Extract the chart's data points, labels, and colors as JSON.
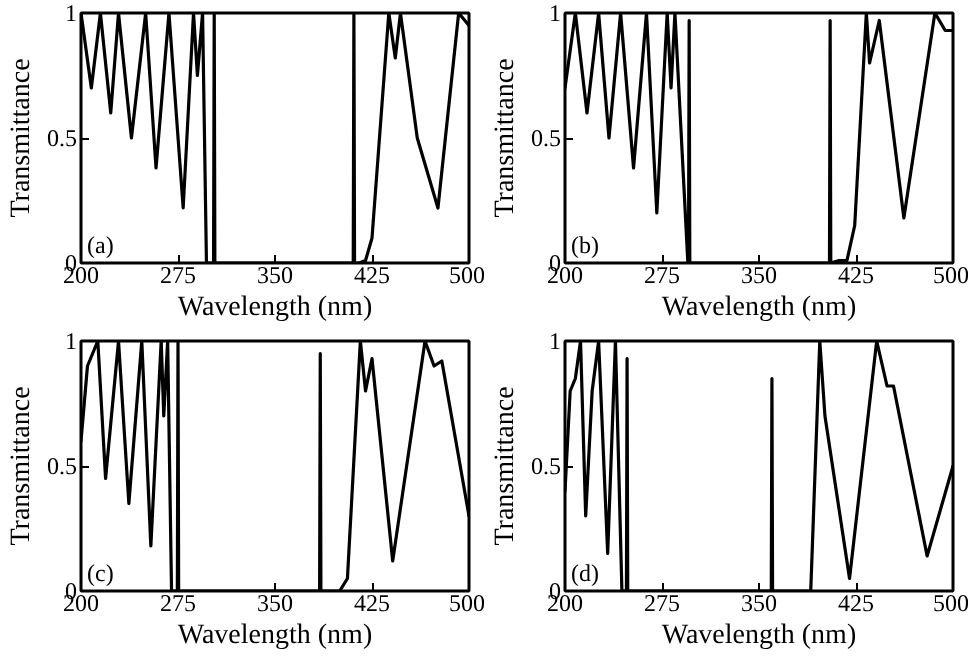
{
  "chart_data": [
    {
      "type": "line",
      "xlabel": "Wavelength (nm)",
      "ylabel": "Transmittance",
      "annotations": [
        "(a)"
      ],
      "xlim": [
        200,
        500
      ],
      "xticks": [
        200,
        275,
        350,
        425,
        500
      ],
      "ylim": [
        0,
        1
      ],
      "yticks": [
        0,
        0.5,
        1
      ],
      "series": [
        {
          "color": "#000000",
          "x": [
            200,
            208,
            215,
            223,
            229,
            239,
            250,
            258,
            268,
            279,
            287,
            290,
            294,
            297,
            302,
            302.5,
            303,
            303.5,
            304,
            410,
            410.5,
            411,
            411.5,
            412,
            415,
            420,
            425,
            438,
            443,
            447,
            460,
            476,
            492,
            500
          ],
          "values": [
            1,
            0.7,
            1,
            0.6,
            1,
            0.5,
            1,
            0.38,
            1,
            0.22,
            1,
            0.75,
            1,
            0,
            0,
            0,
            1,
            0,
            0,
            0,
            0,
            1,
            0,
            0,
            0,
            0.01,
            0.1,
            1,
            0.82,
            1,
            0.5,
            0.22,
            1,
            0.95
          ]
        }
      ]
    },
    {
      "type": "line",
      "xlabel": "Wavelength (nm)",
      "ylabel": "Transmittance",
      "annotations": [
        "(b)"
      ],
      "xlim": [
        200,
        500
      ],
      "xticks": [
        200,
        275,
        350,
        425,
        500
      ],
      "ylim": [
        0,
        1
      ],
      "yticks": [
        0,
        0.5,
        1
      ],
      "series": [
        {
          "color": "#000000",
          "x": [
            200,
            208,
            217,
            226,
            234,
            243,
            253,
            263,
            271,
            279,
            282,
            285,
            295,
            295.5,
            296,
            296.5,
            404.5,
            405,
            405.5,
            412,
            418,
            424,
            433,
            435.5,
            443,
            462,
            486,
            494,
            500
          ],
          "values": [
            0.7,
            1,
            0.6,
            1,
            0.5,
            1,
            0.38,
            1,
            0.2,
            1,
            0.7,
            1,
            0,
            0,
            0.97,
            0,
            0,
            0.97,
            0,
            0.01,
            0.01,
            0.15,
            1,
            0.8,
            0.97,
            0.18,
            1,
            0.93,
            0.93
          ]
        }
      ]
    },
    {
      "type": "line",
      "xlabel": "Wavelength (nm)",
      "ylabel": "Transmittance",
      "annotations": [
        "(c)"
      ],
      "xlim": [
        200,
        500
      ],
      "xticks": [
        200,
        275,
        350,
        425,
        500
      ],
      "ylim": [
        0,
        1
      ],
      "yticks": [
        0,
        0.5,
        1
      ],
      "series": [
        {
          "color": "#000000",
          "x": [
            200,
            205,
            209,
            213,
            219,
            229,
            237,
            247,
            254,
            262,
            264,
            267,
            270,
            274,
            274.5,
            275,
            275.5,
            384.5,
            385,
            385.5,
            400,
            406,
            416,
            420,
            425,
            441,
            466,
            473,
            479,
            500
          ],
          "values": [
            0.6,
            0.9,
            0.95,
            1,
            0.45,
            1,
            0.35,
            1,
            0.18,
            1,
            0.7,
            1,
            0,
            0,
            0,
            1,
            0,
            0,
            0.95,
            0,
            0,
            0.05,
            1,
            0.8,
            0.93,
            0.12,
            1,
            0.9,
            0.92,
            0.3
          ]
        }
      ]
    },
    {
      "type": "line",
      "xlabel": "Wavelength (nm)",
      "ylabel": "Transmittance",
      "annotations": [
        "(d)"
      ],
      "xlim": [
        200,
        500
      ],
      "xticks": [
        200,
        275,
        350,
        425,
        500
      ],
      "ylim": [
        0,
        1
      ],
      "yticks": [
        0,
        0.5,
        1
      ],
      "series": [
        {
          "color": "#000000",
          "x": [
            200,
            204,
            208,
            212,
            216,
            221,
            226,
            233,
            239,
            244,
            247.5,
            248,
            248.5,
            359.5,
            360,
            360.5,
            390,
            397,
            401,
            420,
            441,
            449,
            454,
            480,
            500
          ],
          "values": [
            0.4,
            0.8,
            0.85,
            1,
            0.3,
            0.8,
            1,
            0.15,
            1,
            0,
            0,
            0.93,
            0,
            0,
            0.85,
            0,
            0,
            1,
            0.7,
            0.05,
            1,
            0.82,
            0.82,
            0.14,
            0.5
          ]
        }
      ]
    }
  ]
}
